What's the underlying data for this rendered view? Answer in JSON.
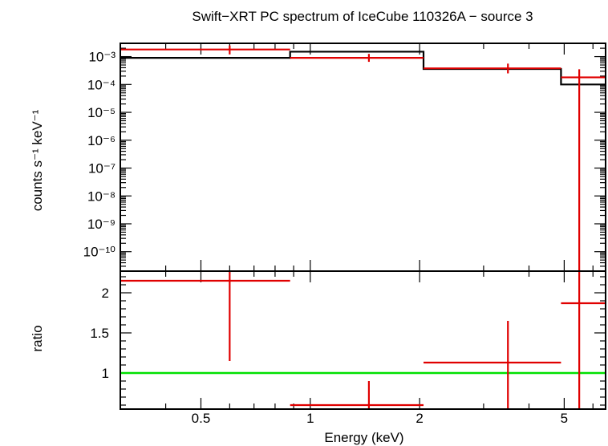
{
  "chart_data": [
    {
      "type": "line",
      "title": "Swift−XRT PC spectrum of IceCube 110326A − source 3",
      "ylabel": "counts s⁻¹ keV⁻¹",
      "yscale": "log",
      "xscale": "log",
      "xlim": [
        0.3,
        6.5
      ],
      "ylim": [
        2e-11,
        0.003
      ],
      "ytick_labels": [
        "10⁻³",
        "10⁻⁴",
        "10⁻⁵",
        "10⁻⁶",
        "10⁻⁷",
        "10⁻⁸",
        "10⁻⁹",
        "10⁻¹⁰"
      ],
      "ytick_values": [
        0.001,
        0.0001,
        1e-05,
        1e-06,
        1e-07,
        1e-08,
        1e-09,
        1e-10
      ],
      "series": [
        {
          "kind": "model-step",
          "color": "#000000",
          "bins": [
            {
              "x0": 0.3,
              "x1": 0.88,
              "y": 0.0009
            },
            {
              "x0": 0.88,
              "x1": 2.05,
              "y": 0.0015
            },
            {
              "x0": 2.05,
              "x1": 4.9,
              "y": 0.00036
            },
            {
              "x0": 4.9,
              "x1": 6.5,
              "y": 0.0001
            }
          ]
        },
        {
          "kind": "data-errorbars",
          "color": "#e00000",
          "points": [
            {
              "x": 0.6,
              "x0": 0.3,
              "x1": 0.88,
              "y": 0.0018,
              "ylo": 0.0012,
              "yhi": 0.0025
            },
            {
              "x": 1.45,
              "x0": 0.88,
              "x1": 2.05,
              "y": 0.0009,
              "ylo": 0.00065,
              "yhi": 0.00125
            },
            {
              "x": 3.5,
              "x0": 2.05,
              "x1": 4.9,
              "y": 0.00038,
              "ylo": 0.00025,
              "yhi": 0.00056
            },
            {
              "x": 5.5,
              "x0": 4.9,
              "x1": 6.5,
              "y": 0.00018,
              "ylo": 2e-11,
              "yhi": 0.00035
            }
          ]
        }
      ]
    },
    {
      "type": "scatter",
      "ylabel": "ratio",
      "xlabel": "Energy (keV)",
      "xscale": "log",
      "xlim": [
        0.3,
        6.5
      ],
      "ylim": [
        0.55,
        2.27
      ],
      "x_tick_labels": [
        "0.5",
        "1",
        "2",
        "5"
      ],
      "x_tick_values": [
        0.5,
        1,
        2,
        5
      ],
      "y_tick_labels": [
        "1",
        "1.5",
        "2"
      ],
      "y_tick_values": [
        1,
        1.5,
        2
      ],
      "reference_line": {
        "y": 1,
        "color": "#00e000"
      },
      "series": [
        {
          "kind": "data-errorbars",
          "color": "#e00000",
          "points": [
            {
              "x": 0.6,
              "x0": 0.3,
              "x1": 0.88,
              "y": 2.15,
              "ylo": 1.15,
              "yhi": 2.27
            },
            {
              "x": 1.45,
              "x0": 0.88,
              "x1": 2.05,
              "y": 0.6,
              "ylo": 0.55,
              "yhi": 0.9
            },
            {
              "x": 3.5,
              "x0": 2.05,
              "x1": 4.9,
              "y": 1.13,
              "ylo": 0.55,
              "yhi": 1.65
            },
            {
              "x": 5.5,
              "x0": 4.9,
              "x1": 6.5,
              "y": 1.87,
              "ylo": 0.55,
              "yhi": 2.27
            }
          ]
        }
      ]
    }
  ]
}
